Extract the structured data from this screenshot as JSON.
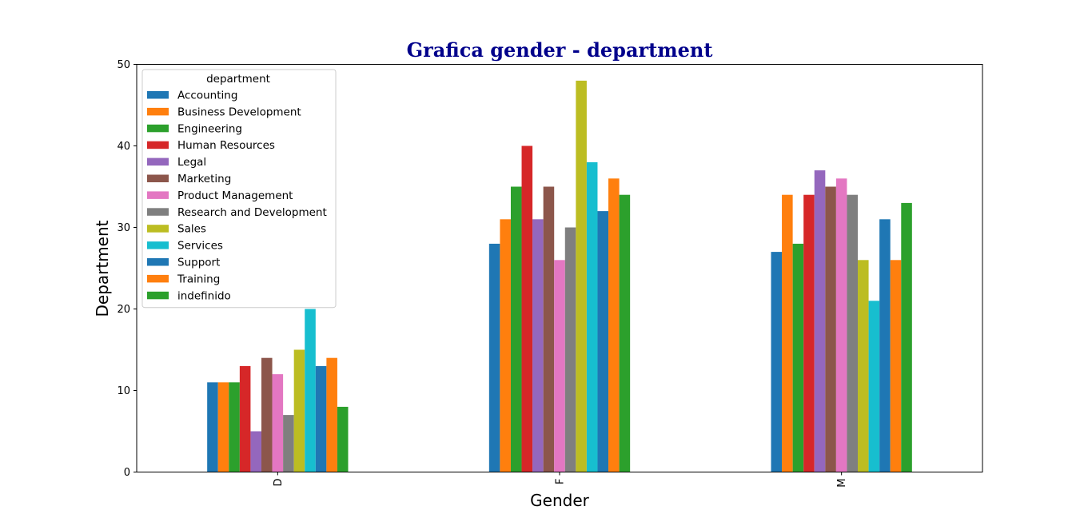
{
  "chart_data": {
    "type": "bar",
    "title": "Grafica gender - department",
    "xlabel": "Gender",
    "ylabel": "Department",
    "categories": [
      "D",
      "F",
      "M"
    ],
    "ylim": [
      0,
      50
    ],
    "yticks": [
      0,
      10,
      20,
      30,
      40,
      50
    ],
    "grid": false,
    "legend": {
      "title": "department",
      "placement": "top-left"
    },
    "series": [
      {
        "name": "Accounting",
        "color": "#1f77b4",
        "values": [
          11,
          28,
          27
        ]
      },
      {
        "name": "Business Development",
        "color": "#ff7f0e",
        "values": [
          11,
          31,
          34
        ]
      },
      {
        "name": "Engineering",
        "color": "#2ca02c",
        "values": [
          11,
          35,
          28
        ]
      },
      {
        "name": "Human Resources",
        "color": "#d62728",
        "values": [
          13,
          40,
          34
        ]
      },
      {
        "name": "Legal",
        "color": "#9467bd",
        "values": [
          5,
          31,
          37
        ]
      },
      {
        "name": "Marketing",
        "color": "#8c564b",
        "values": [
          14,
          35,
          35
        ]
      },
      {
        "name": "Product Management",
        "color": "#e377c2",
        "values": [
          12,
          26,
          36
        ]
      },
      {
        "name": "Research and Development",
        "color": "#7f7f7f",
        "values": [
          7,
          30,
          34
        ]
      },
      {
        "name": "Sales",
        "color": "#bcbd22",
        "values": [
          15,
          48,
          26
        ]
      },
      {
        "name": "Services",
        "color": "#17becf",
        "values": [
          20,
          38,
          21
        ]
      },
      {
        "name": "Support",
        "color": "#1f77b4",
        "values": [
          13,
          32,
          31
        ]
      },
      {
        "name": "Training",
        "color": "#ff7f0e",
        "values": [
          14,
          36,
          26
        ]
      },
      {
        "name": "indefinido",
        "color": "#2ca02c",
        "values": [
          8,
          34,
          33
        ]
      }
    ]
  }
}
